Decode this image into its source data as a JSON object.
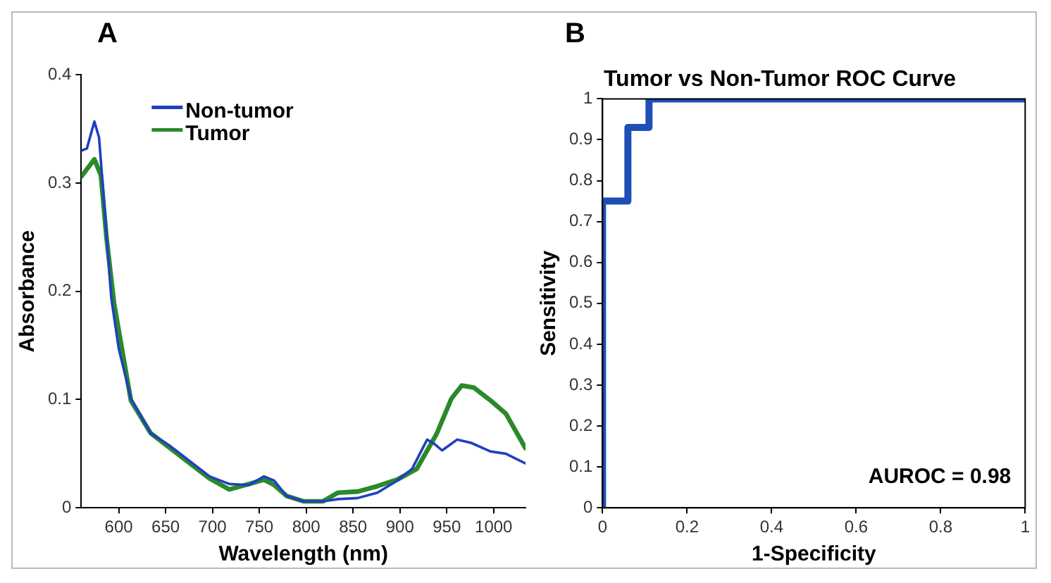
{
  "chart_data": [
    {
      "type": "line",
      "xlabel": "Wavelength (nm)",
      "ylabel": "Absorbance",
      "annotations": [
        "A"
      ],
      "xlim": [
        560,
        1034
      ],
      "xticks": [
        600,
        650,
        700,
        750,
        800,
        850,
        900,
        950,
        1000
      ],
      "ylim": [
        0,
        0.4
      ],
      "yticks": [
        0,
        0.1,
        0.2,
        0.3,
        0.4
      ],
      "grid": false,
      "legend": "top left",
      "marker": "none",
      "line_style": "solid",
      "series": [
        {
          "name": "Non-tumor",
          "color": "#2040c0",
          "x": [
            560,
            566,
            574,
            579,
            584,
            592,
            600,
            613,
            634,
            655,
            676,
            697,
            718,
            739,
            755,
            766,
            779,
            797,
            818,
            834,
            855,
            876,
            897,
            913,
            929,
            937,
            945,
            961,
            976,
            997,
            1013,
            1034
          ],
          "values": [
            0.33,
            0.332,
            0.357,
            0.342,
            0.286,
            0.194,
            0.147,
            0.101,
            0.069,
            0.057,
            0.043,
            0.029,
            0.022,
            0.021,
            0.029,
            0.025,
            0.011,
            0.006,
            0.006,
            0.008,
            0.009,
            0.014,
            0.025,
            0.036,
            0.063,
            0.059,
            0.053,
            0.063,
            0.06,
            0.052,
            0.05,
            0.041
          ]
        },
        {
          "name": "Tumor",
          "color": "#2a8a2a",
          "x": [
            560,
            574,
            581,
            587,
            595,
            613,
            634,
            655,
            676,
            697,
            718,
            739,
            755,
            766,
            779,
            797,
            818,
            834,
            855,
            876,
            897,
            918,
            939,
            955,
            966,
            979,
            997,
            1013,
            1034
          ],
          "values": [
            0.306,
            0.322,
            0.307,
            0.249,
            0.189,
            0.099,
            0.069,
            0.055,
            0.041,
            0.027,
            0.017,
            0.022,
            0.026,
            0.021,
            0.011,
            0.006,
            0.006,
            0.014,
            0.015,
            0.02,
            0.026,
            0.036,
            0.068,
            0.101,
            0.113,
            0.111,
            0.099,
            0.087,
            0.055
          ]
        }
      ]
    },
    {
      "type": "line",
      "title": "Tumor vs Non-Tumor ROC Curve",
      "xlabel": "1-Specificity",
      "ylabel": "Sensitivity",
      "annotations": [
        "B",
        "AUROC = 0.98"
      ],
      "xlim": [
        0,
        1
      ],
      "xticks": [
        0,
        0.2,
        0.4,
        0.6,
        0.8,
        1
      ],
      "ylim": [
        0,
        1
      ],
      "yticks": [
        0,
        0.1,
        0.2,
        0.3,
        0.4,
        0.5,
        0.6,
        0.7,
        0.8,
        0.9,
        1
      ],
      "grid": false,
      "marker": "none",
      "line_style": "solid",
      "series": [
        {
          "color": "#1f4fb4",
          "x": [
            0,
            0,
            0.06,
            0.06,
            0.11,
            0.11,
            1
          ],
          "values": [
            0,
            0.75,
            0.75,
            0.93,
            0.93,
            1,
            1
          ]
        }
      ]
    }
  ]
}
